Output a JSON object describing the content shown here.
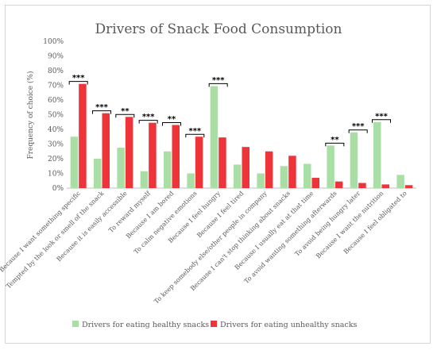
{
  "chart_data": {
    "type": "bar",
    "title": "Drivers of Snack Food Consumption",
    "ylabel": "Frequency of choice (%)",
    "ylim": [
      0,
      100
    ],
    "yticks": [
      "0%",
      "10%",
      "20%",
      "30%",
      "40%",
      "50%",
      "60%",
      "70%",
      "80%",
      "90%",
      "100%"
    ],
    "legend_position": "bottom",
    "categories": [
      "Because I want something specific",
      "Tempted by the look or smell of the snack",
      "Because it is easily accessible",
      "To reward myself",
      "Because I am bored",
      "To calm negative emotions",
      "Because I feel hungry",
      "Because I feel tired",
      "To keep somebody else/other people in company",
      "Because I can't stop thinking about snacks",
      "Because I usually eat at that time",
      "To avoid wanting something afterwards",
      "To avoid being hungry later",
      "Because I want the nutrition",
      "Because I feel obligated to"
    ],
    "series": [
      {
        "name": "Drivers for eating healthy snacks",
        "color": "#a9dfa4",
        "values": [
          35,
          20,
          27.5,
          11.5,
          25,
          10,
          69.5,
          16,
          10,
          15,
          16.5,
          29,
          38,
          45,
          9
        ]
      },
      {
        "name": "Drivers for eating unhealthy snacks",
        "color": "#ee3438",
        "values": [
          71,
          51,
          48.5,
          44.5,
          43,
          35,
          34.5,
          28,
          25,
          22,
          7,
          4.5,
          3.5,
          2.5,
          2
        ]
      }
    ],
    "significance": [
      {
        "category_index": 0,
        "label": "***"
      },
      {
        "category_index": 1,
        "label": "***"
      },
      {
        "category_index": 2,
        "label": "**"
      },
      {
        "category_index": 3,
        "label": "***"
      },
      {
        "category_index": 4,
        "label": "**"
      },
      {
        "category_index": 5,
        "label": "***"
      },
      {
        "category_index": 6,
        "label": "***"
      },
      {
        "category_index": 11,
        "label": "**"
      },
      {
        "category_index": 12,
        "label": "***"
      },
      {
        "category_index": 13,
        "label": "***"
      }
    ]
  }
}
